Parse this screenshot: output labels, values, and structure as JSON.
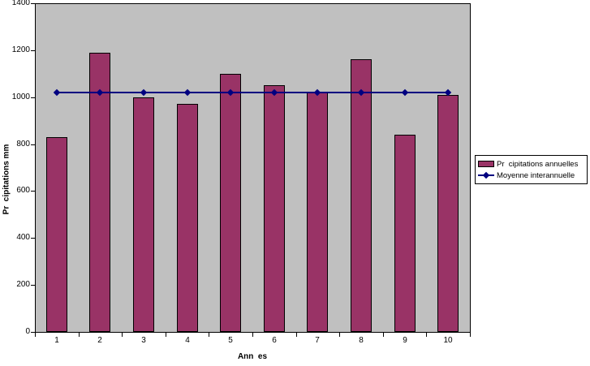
{
  "chart_data": {
    "type": "bar",
    "title": "",
    "categories": [
      "1",
      "2",
      "3",
      "4",
      "5",
      "6",
      "7",
      "8",
      "9",
      "10"
    ],
    "series": [
      {
        "name": "Pr  cipitations annuelles",
        "type": "bar",
        "color": "#993366",
        "values": [
          830,
          1190,
          1000,
          970,
          1100,
          1050,
          1020,
          1160,
          840,
          1010
        ]
      },
      {
        "name": "Moyenne interannuelle",
        "type": "line",
        "color": "#000080",
        "marker": "diamond",
        "values": [
          1020,
          1020,
          1020,
          1020,
          1020,
          1020,
          1020,
          1020,
          1020,
          1020
        ]
      }
    ],
    "xlabel": "Ann  es",
    "ylabel": "Pr  cipitations mm",
    "ylim": [
      0,
      1400
    ],
    "yticks": [
      0,
      200,
      400,
      600,
      800,
      1000,
      1200,
      1400
    ],
    "grid": false,
    "legend_position": "right",
    "plot_background": "#c0c0c0",
    "axis_color": "#000000",
    "text_color": "#000000"
  }
}
